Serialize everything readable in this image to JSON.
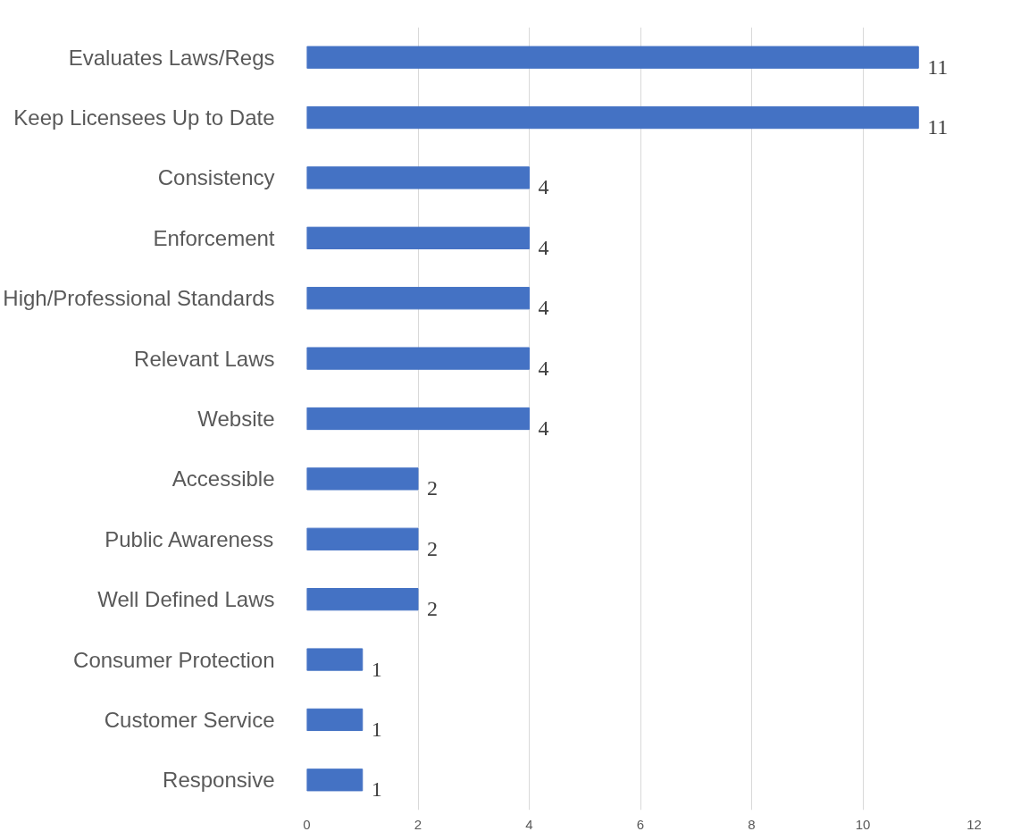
{
  "chart_data": {
    "type": "bar",
    "orientation": "horizontal",
    "categories": [
      "Evaluates Laws/Regs",
      "Keep Licensees Up to Date",
      "Consistency",
      "Enforcement",
      "High/Professional Standards",
      "Relevant Laws",
      "Website",
      "Accessible",
      "Public Awareness",
      "Well Defined Laws",
      "Consumer Protection",
      "Customer Service",
      "Responsive"
    ],
    "values": [
      11,
      11,
      4,
      4,
      4,
      4,
      4,
      2,
      2,
      2,
      1,
      1,
      1
    ],
    "color": "#4472c4",
    "xlim": [
      0,
      12
    ],
    "xticks": [
      0,
      2,
      4,
      6,
      8,
      10,
      12
    ],
    "grid": "x",
    "data_labels": true
  }
}
